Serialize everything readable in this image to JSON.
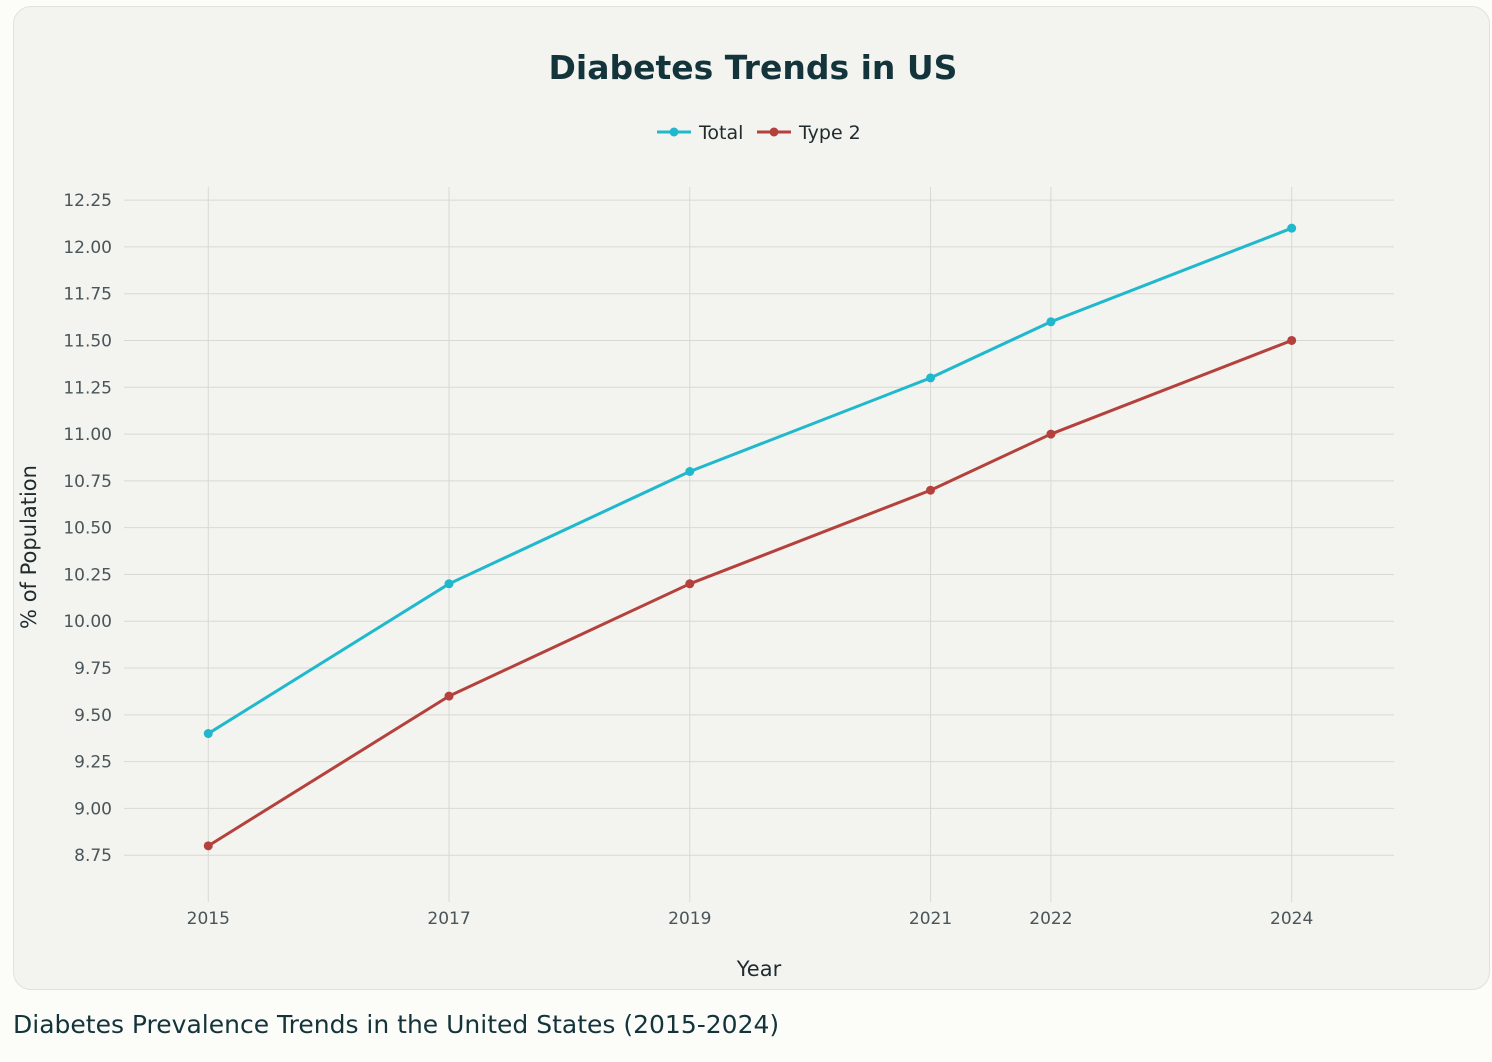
{
  "chart_data": {
    "type": "line",
    "title": "Diabetes Trends in US",
    "xlabel": "Year",
    "ylabel": "% of Population",
    "x": [
      2015,
      2017,
      2019,
      2021,
      2022,
      2024
    ],
    "xlim": [
      2014.3,
      2024.85
    ],
    "ylim": [
      8.5,
      12.32
    ],
    "y_ticks": [
      "8.75",
      "9.00",
      "9.25",
      "9.50",
      "9.75",
      "10.00",
      "10.25",
      "10.50",
      "10.75",
      "11.00",
      "11.25",
      "11.50",
      "11.75",
      "12.00",
      "12.25"
    ],
    "grid": true,
    "legend": "top-center",
    "series": [
      {
        "name": "Total",
        "color": "#1fb8cd",
        "values": [
          9.4,
          10.2,
          10.8,
          11.3,
          11.6,
          12.1
        ]
      },
      {
        "name": "Type 2",
        "color": "#b4413c",
        "values": [
          8.8,
          9.6,
          10.2,
          10.7,
          11.0,
          11.5
        ]
      }
    ]
  },
  "caption": "Diabetes Prevalence Trends in the United States (2015-2024)"
}
